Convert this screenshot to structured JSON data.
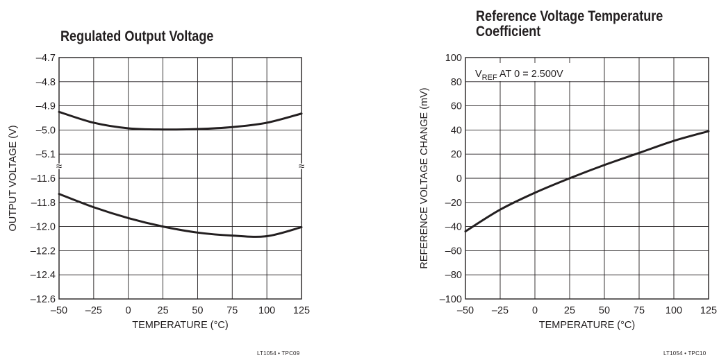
{
  "chart_data": [
    {
      "type": "line",
      "title": "Regulated Output Voltage",
      "xlabel": "TEMPERATURE (°C)",
      "ylabel": "OUTPUT VOLTAGE (V)",
      "xlim": [
        -50,
        125
      ],
      "x_ticks": [
        "–50",
        "–25",
        "0",
        "25",
        "50",
        "75",
        "100",
        "125"
      ],
      "y_ticks": [
        "–4.7",
        "–4.8",
        "–4.9",
        "–5.0",
        "–5.1",
        "–11.6",
        "–11.8",
        "–12.0",
        "–12.2",
        "–12.4",
        "–12.6"
      ],
      "y_axis_break": "≈",
      "upper_segment_ylim": [
        -5.1,
        -4.7
      ],
      "lower_segment_ylim": [
        -12.6,
        -11.6
      ],
      "grid": true,
      "series": [
        {
          "segment": "upper",
          "x": [
            -50,
            -25,
            0,
            25,
            50,
            75,
            100,
            125
          ],
          "y": [
            -4.925,
            -4.97,
            -4.993,
            -4.998,
            -4.996,
            -4.988,
            -4.97,
            -4.932
          ]
        },
        {
          "segment": "lower",
          "x": [
            -50,
            -25,
            0,
            25,
            50,
            75,
            100,
            125
          ],
          "y": [
            -11.73,
            -11.84,
            -11.93,
            -12.0,
            -12.05,
            -12.075,
            -12.08,
            -12.005
          ]
        }
      ],
      "footnote": "LT1054 • TPC09"
    },
    {
      "type": "line",
      "title": "Reference Voltage Temperature Coefficient",
      "xlabel": "TEMPERATURE (°C)",
      "ylabel": "REFERENCE VOLTAGE CHANGE (mV)",
      "xlim": [
        -50,
        125
      ],
      "ylim": [
        -100,
        100
      ],
      "x_ticks": [
        "–50",
        "–25",
        "0",
        "25",
        "50",
        "75",
        "100",
        "125"
      ],
      "y_ticks": [
        "100",
        "80",
        "60",
        "40",
        "20",
        "0",
        "–20",
        "–40",
        "–60",
        "–80",
        "–100"
      ],
      "grid": true,
      "annotation": {
        "main": "V",
        "sub": "REF",
        "rest": " AT 0 = 2.500V"
      },
      "series": [
        {
          "x": [
            -50,
            -25,
            0,
            25,
            50,
            75,
            100,
            125
          ],
          "y": [
            -44,
            -26,
            -12,
            0,
            11,
            21,
            31,
            39
          ]
        }
      ],
      "footnote": "LT1054 • TPC10"
    }
  ]
}
